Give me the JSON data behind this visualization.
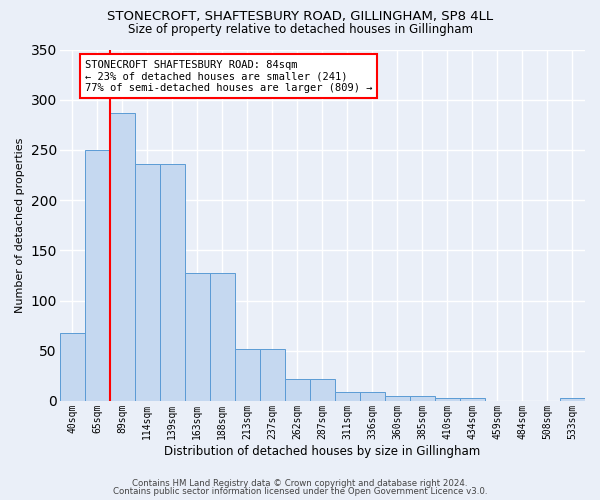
{
  "title": "STONECROFT, SHAFTESBURY ROAD, GILLINGHAM, SP8 4LL",
  "subtitle": "Size of property relative to detached houses in Gillingham",
  "xlabel": "Distribution of detached houses by size in Gillingham",
  "ylabel": "Number of detached properties",
  "bar_labels": [
    "40sqm",
    "65sqm",
    "89sqm",
    "114sqm",
    "139sqm",
    "163sqm",
    "188sqm",
    "213sqm",
    "237sqm",
    "262sqm",
    "287sqm",
    "311sqm",
    "336sqm",
    "360sqm",
    "385sqm",
    "410sqm",
    "434sqm",
    "459sqm",
    "484sqm",
    "508sqm",
    "533sqm"
  ],
  "bar_values": [
    68,
    250,
    287,
    236,
    236,
    127,
    127,
    52,
    52,
    22,
    22,
    9,
    9,
    5,
    5,
    3,
    3,
    0,
    0,
    0,
    3
  ],
  "bar_color": "#c5d8f0",
  "bar_edge_color": "#5b9bd5",
  "red_line_index": 2,
  "annotation_title": "STONECROFT SHAFTESBURY ROAD: 84sqm",
  "annotation_line1": "← 23% of detached houses are smaller (241)",
  "annotation_line2": "77% of semi-detached houses are larger (809) →",
  "ylim": [
    0,
    350
  ],
  "yticks": [
    0,
    50,
    100,
    150,
    200,
    250,
    300,
    350
  ],
  "footer1": "Contains HM Land Registry data © Crown copyright and database right 2024.",
  "footer2": "Contains public sector information licensed under the Open Government Licence v3.0.",
  "bg_color": "#eaeff8",
  "grid_color": "#ffffff"
}
